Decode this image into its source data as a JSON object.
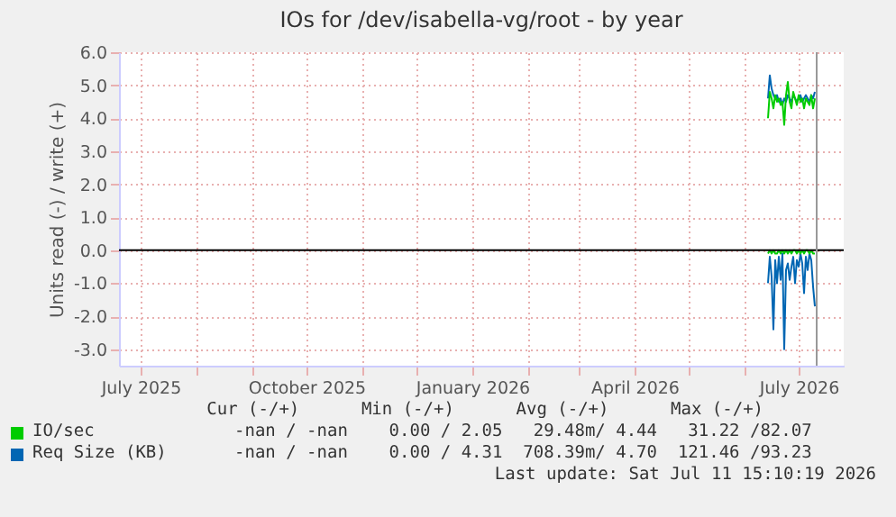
{
  "chart_data": {
    "type": "line",
    "title": "IOs for /dev/isabella-vg/root - by year",
    "ylabel": "Units read (-) / write (+)",
    "x": [
      "2026-06-14",
      "2026-06-15",
      "2026-06-16",
      "2026-06-17",
      "2026-06-18",
      "2026-06-19",
      "2026-06-20",
      "2026-06-21",
      "2026-06-22",
      "2026-06-23",
      "2026-06-24",
      "2026-06-25",
      "2026-06-26",
      "2026-06-27",
      "2026-06-28",
      "2026-06-29",
      "2026-06-30",
      "2026-07-01",
      "2026-07-02",
      "2026-07-03",
      "2026-07-04",
      "2026-07-05",
      "2026-07-06",
      "2026-07-07",
      "2026-07-08",
      "2026-07-09",
      "2026-07-10"
    ],
    "series": [
      {
        "color": "#0066b3",
        "values": [
          -1.0,
          -0.2,
          -0.8,
          -2.4,
          -0.3,
          -1.0,
          -0.2,
          -0.9,
          -0.1,
          -3.0,
          -0.6,
          -0.4,
          -0.9,
          -0.5,
          -0.2,
          -1.0,
          -0.3,
          -0.5,
          -0.1,
          -0.4,
          -1.3,
          -0.2,
          -0.6,
          -0.1,
          -0.3,
          -1.1,
          -1.7
        ]
      },
      {
        "color": "#00cc00",
        "values": [
          -0.1,
          0,
          -0.1,
          0,
          -0.1,
          -0.1,
          0,
          -0.1,
          0,
          -0.1,
          0,
          -0.1,
          0,
          -0.1,
          0,
          0,
          -0.1,
          0,
          -0.1,
          0,
          -0.1,
          0,
          0,
          -0.1,
          0,
          -0.1,
          -0.1
        ]
      },
      {
        "name": "Req Size (KB)",
        "color": "#0066b3",
        "values": [
          4.6,
          5.3,
          4.9,
          4.7,
          4.6,
          4.7,
          4.5,
          4.6,
          4.4,
          4.6,
          4.5,
          4.7,
          4.6,
          4.5,
          4.7,
          4.6,
          4.5,
          4.6,
          4.7,
          4.5,
          4.6,
          4.7,
          4.6,
          4.5,
          4.7,
          4.6,
          4.8
        ]
      },
      {
        "name": "IO/sec",
        "color": "#00cc00",
        "values": [
          4.0,
          4.8,
          4.6,
          4.3,
          4.7,
          4.5,
          4.6,
          4.4,
          4.5,
          3.8,
          4.7,
          5.1,
          4.5,
          4.3,
          4.8,
          4.6,
          4.4,
          4.7,
          4.5,
          4.6,
          4.3,
          4.6,
          4.5,
          4.4,
          4.7,
          4.3,
          4.6
        ]
      }
    ],
    "xlim": [
      "2025-06-19",
      "2026-07-26"
    ],
    "xticks": [
      {
        "value": "2025-07",
        "label": "July 2025"
      },
      {
        "value": "2025-08",
        "label": null
      },
      {
        "value": "2025-09",
        "label": null
      },
      {
        "value": "2025-10",
        "label": "October 2025"
      },
      {
        "value": "2025-11",
        "label": null
      },
      {
        "value": "2025-12",
        "label": null
      },
      {
        "value": "2026-01",
        "label": "January 2026"
      },
      {
        "value": "2026-02",
        "label": null
      },
      {
        "value": "2026-03",
        "label": null
      },
      {
        "value": "2026-04",
        "label": "April 2026"
      },
      {
        "value": "2026-05",
        "label": null
      },
      {
        "value": "2026-06",
        "label": null
      },
      {
        "value": "2026-07",
        "label": "July 2026"
      }
    ],
    "ylim": [
      -3.5,
      6.0
    ],
    "yticks": [
      {
        "value": -3,
        "label": "-3.0"
      },
      {
        "value": -2,
        "label": "-2.0"
      },
      {
        "value": -1,
        "label": "-1.0"
      },
      {
        "value": 0,
        "label": "0.0"
      },
      {
        "value": 1,
        "label": "1.0"
      },
      {
        "value": 2,
        "label": "2.0"
      },
      {
        "value": 3,
        "label": "3.0"
      },
      {
        "value": 4,
        "label": "4.0"
      },
      {
        "value": 5,
        "label": "5.0"
      },
      {
        "value": 6,
        "label": "6.0"
      }
    ],
    "ref_lines": [
      {
        "axis": "y",
        "value": 0,
        "color": "#000000"
      },
      {
        "axis": "x",
        "value": "2026-07-11",
        "color": "#999999"
      }
    ],
    "grid": true,
    "legend": "bottom",
    "annotations": [
      "Cur (-/+)      Min (-/+)      Avg (-/+)      Max (-/+)",
      "-nan / -nan    0.00 / 2.05   29.48m/ 4.44   31.22 /82.07",
      "-nan / -nan    0.00 / 4.31  708.39m/ 4.70  121.46 /93.23",
      "Last update: Sat Jul 11 15:10:19 2026"
    ]
  }
}
